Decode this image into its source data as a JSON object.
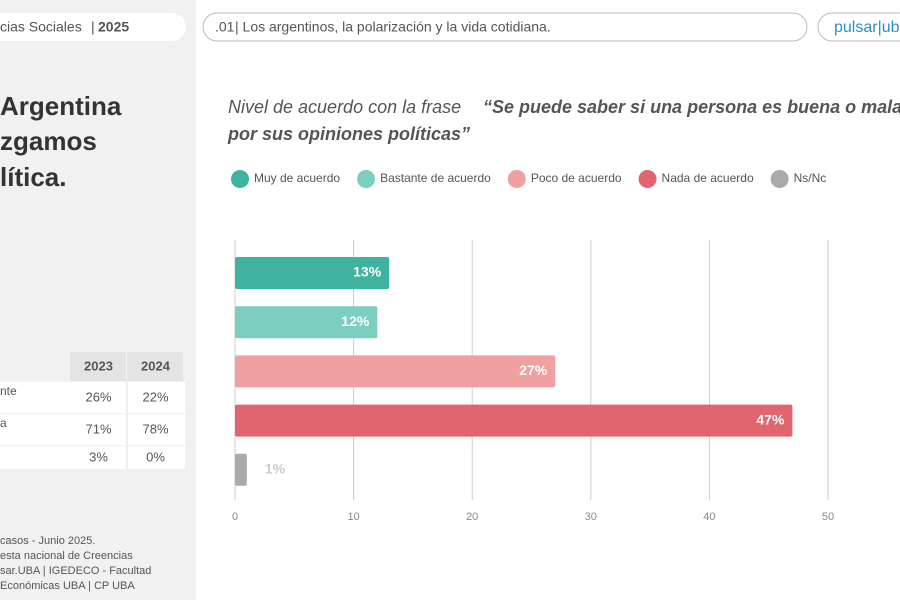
{
  "header": {
    "section": "cias Sociales",
    "year": "2025",
    "number": ".01",
    "topic": "| Los argentinos, la polarización y la vida cotidiana.",
    "logo": "pulsar|ub"
  },
  "sidebar": {
    "title_lines": [
      "Argentina",
      "zgamos",
      "lítica."
    ],
    "table": {
      "columns": [
        "2023",
        "2024"
      ],
      "rows": [
        {
          "label": "nte",
          "cells": [
            "26%",
            "22%"
          ]
        },
        {
          "label": "a",
          "cells": [
            "71%",
            "78%"
          ]
        },
        {
          "cells": [
            "3%",
            "0%"
          ]
        }
      ]
    },
    "footer": [
      "casos - Junio 2025.",
      "esta nacional de Creencias",
      "sar.UBA | IGEDECO - Facultad",
      "Económicas UBA | CP UBA"
    ]
  },
  "chart_data": {
    "type": "hbar",
    "title": "Nivel de acuerdo con la frase",
    "quote": "“Se puede saber si una persona es buena o mala por sus opiniones políticas”",
    "categories": [
      "Muy de acuerdo",
      "Bastante de acuerdo",
      "Poco de acuerdo",
      "Nada de acuerdo",
      "Ns/Nc"
    ],
    "colors": [
      "#3fb3a0",
      "#7ccfc0",
      "#f0a0a0",
      "#e0656e",
      "#aaaaaa"
    ],
    "values": [
      13,
      12,
      27,
      47,
      1
    ],
    "value_labels": [
      "13%",
      "12%",
      "27%",
      "47%",
      "1%"
    ],
    "xlim": [
      0,
      50
    ],
    "xticks": [
      0,
      10,
      20,
      30,
      40,
      50
    ],
    "grid": true
  }
}
